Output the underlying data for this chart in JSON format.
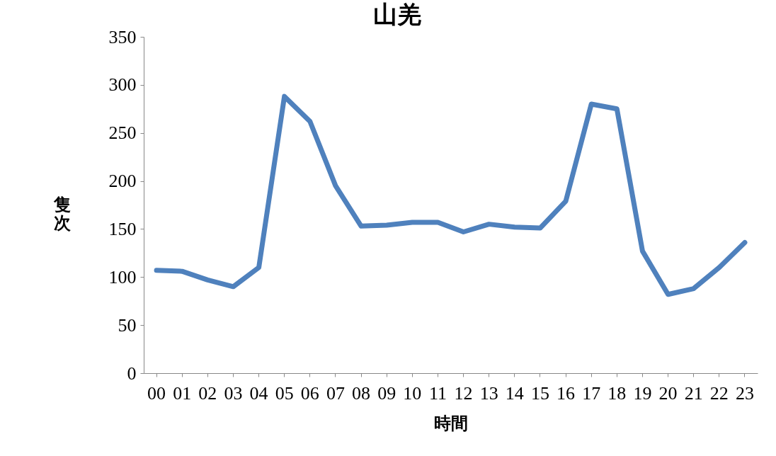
{
  "chart_data": {
    "type": "line",
    "title": "山羌",
    "xlabel": "時間",
    "ylabel": "隻次",
    "categories": [
      "00",
      "01",
      "02",
      "03",
      "04",
      "05",
      "06",
      "07",
      "08",
      "09",
      "10",
      "11",
      "12",
      "13",
      "14",
      "15",
      "16",
      "17",
      "18",
      "19",
      "20",
      "21",
      "22",
      "23"
    ],
    "series": [
      {
        "color": "#4f81bd",
        "values": [
          107,
          106,
          97,
          90,
          110,
          288,
          262,
          195,
          153,
          154,
          157,
          157,
          147,
          155,
          152,
          151,
          179,
          280,
          275,
          127,
          82,
          88,
          110,
          136
        ]
      }
    ],
    "ylim": [
      0,
      350
    ],
    "yticks": [
      0,
      50,
      100,
      150,
      200,
      250,
      300,
      350
    ],
    "grid": false,
    "legend": false,
    "marker": "none",
    "line_style": "solid"
  }
}
